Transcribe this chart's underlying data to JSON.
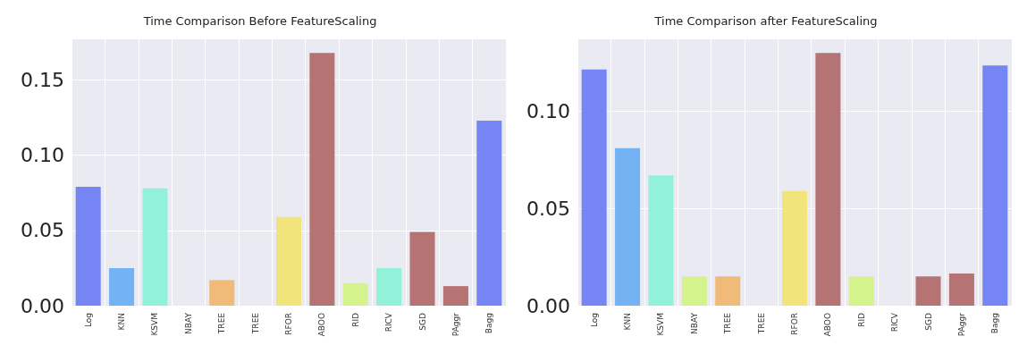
{
  "chart_data": [
    {
      "type": "bar",
      "title": "Time Comparison Before FeatureScaling",
      "categories": [
        "Log",
        "KNN",
        "KSVM",
        "NBAY",
        "TREE",
        "TREE",
        "RFOR",
        "ABOO",
        "RID",
        "RICV",
        "SGD",
        "PAggr",
        "Bagg"
      ],
      "values": [
        0.079,
        0.025,
        0.078,
        0,
        0.017,
        0,
        0.059,
        0.168,
        0.015,
        0.025,
        0.049,
        0.013,
        0.123
      ],
      "colors": [
        "#7585f3",
        "#74b3f3",
        "#92f2d9",
        "#d5f38c",
        "#f0bb78",
        "#f0bb78",
        "#f0e47a",
        "#b57374",
        "#d5f38c",
        "#92f2d9",
        "#b57374",
        "#b57374",
        "#7585f3"
      ],
      "ylim": [
        0,
        0.177
      ],
      "yticks": [
        {
          "value": 0,
          "label": "0.00"
        },
        {
          "value": 0.05,
          "label": "0.05"
        },
        {
          "value": 0.1,
          "label": "0.10"
        },
        {
          "value": 0.15,
          "label": "0.15"
        }
      ],
      "grid": true
    },
    {
      "type": "bar",
      "title": "Time Comparison after FeatureScaling",
      "categories": [
        "Log",
        "KNN",
        "KSVM",
        "NBAY",
        "TREE",
        "TREE",
        "RFOR",
        "ABOO",
        "RID",
        "RICV",
        "SGD",
        "PAggr",
        "Bagg"
      ],
      "values": [
        0.1215,
        0.081,
        0.067,
        0.015,
        0.015,
        0,
        0.059,
        0.13,
        0.015,
        0,
        0.015,
        0.0165,
        0.1235
      ],
      "colors": [
        "#7585f3",
        "#74b3f3",
        "#92f2d9",
        "#d5f38c",
        "#f0bb78",
        "#f0bb78",
        "#f0e47a",
        "#b57374",
        "#d5f38c",
        "#92f2d9",
        "#b57374",
        "#b57374",
        "#7585f3"
      ],
      "ylim": [
        0,
        0.137
      ],
      "yticks": [
        {
          "value": 0,
          "label": "0.00"
        },
        {
          "value": 0.05,
          "label": "0.05"
        },
        {
          "value": 0.1,
          "label": "0.10"
        }
      ],
      "grid": true
    }
  ]
}
